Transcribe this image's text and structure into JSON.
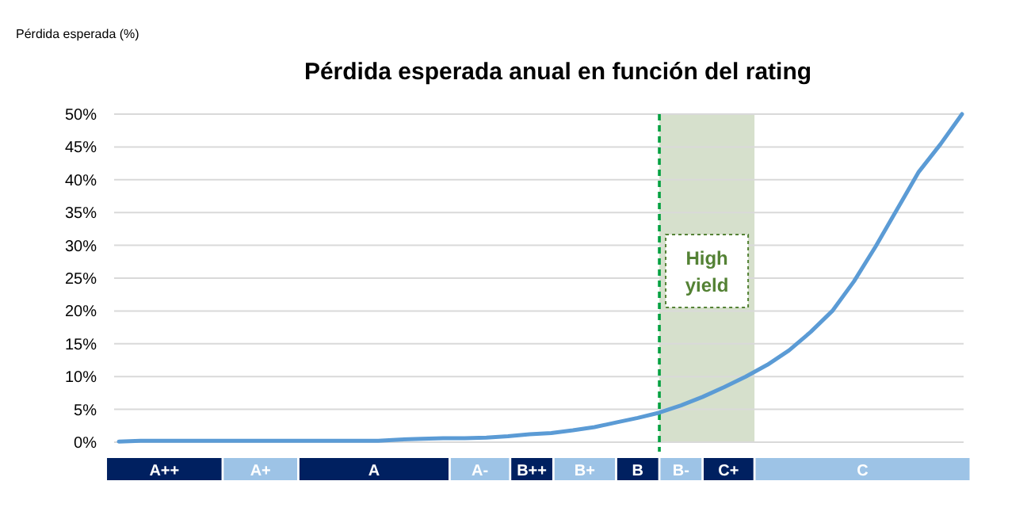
{
  "chart_data": {
    "type": "line",
    "title": "Pérdida esperada anual en función del rating",
    "annotations": [
      "Pérdida esperada (%)",
      "A++",
      "A+",
      "A",
      "A-",
      "B++",
      "B+",
      "B",
      "B-",
      "C+",
      "C",
      "High yield"
    ],
    "categories": [
      null,
      null,
      null,
      null,
      null,
      null,
      null,
      null,
      null,
      null,
      null,
      null,
      null,
      null,
      null,
      null,
      null,
      null,
      null,
      null,
      null,
      null,
      null,
      null,
      null,
      null,
      null,
      null,
      null,
      null,
      null,
      null,
      null,
      null,
      null,
      null,
      null,
      null,
      null,
      null
    ],
    "ylim": [
      0,
      50
    ],
    "yticks": [
      {
        "value": 0,
        "label": "0%"
      },
      {
        "value": 5,
        "label": "5%"
      },
      {
        "value": 10,
        "label": "10%"
      },
      {
        "value": 15,
        "label": "15%"
      },
      {
        "value": 20,
        "label": "20%"
      },
      {
        "value": 25,
        "label": "25%"
      },
      {
        "value": 30,
        "label": "30%"
      },
      {
        "value": 35,
        "label": "35%"
      },
      {
        "value": 40,
        "label": "40%"
      },
      {
        "value": 45,
        "label": "45%"
      },
      {
        "value": 50,
        "label": "50%"
      }
    ],
    "tick_labels": "y",
    "grid": "y",
    "marker": "none",
    "line_style": "solid",
    "series": [
      {
        "color": "#5b9bd5",
        "values": [
          0.1,
          0.2,
          0.2,
          0.2,
          0.2,
          0.2,
          0.2,
          0.2,
          0.2,
          0.2,
          0.2,
          0.2,
          0.2,
          0.4,
          0.5,
          0.6,
          0.6,
          0.7,
          0.9,
          1.2,
          1.4,
          1.8,
          2.3,
          3.0,
          3.7,
          4.5,
          5.6,
          6.9,
          8.4,
          10.0,
          11.8,
          14.0,
          16.8,
          20.0,
          24.5,
          29.8,
          35.5,
          41.2,
          45.4,
          50
        ]
      }
    ]
  }
}
